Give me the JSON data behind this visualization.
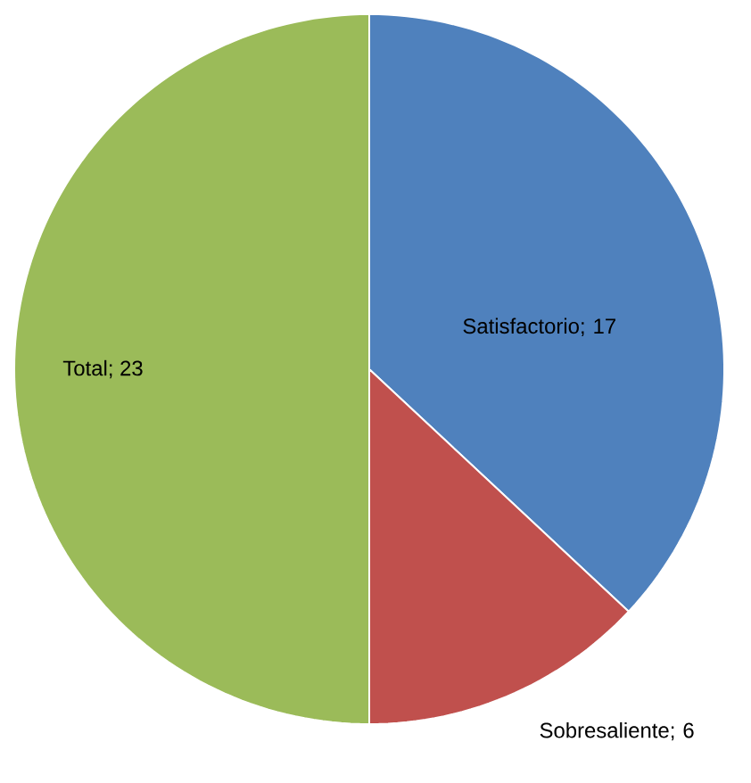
{
  "chart_data": {
    "type": "pie",
    "categories": [
      "Satisfactorio",
      "Sobresaliente",
      "Total"
    ],
    "values": [
      17,
      6,
      23
    ],
    "colors": [
      "#4f81bd",
      "#c0504d",
      "#9bbb59"
    ],
    "value_labels": [
      "; 17",
      "; 6",
      "; 23"
    ]
  }
}
